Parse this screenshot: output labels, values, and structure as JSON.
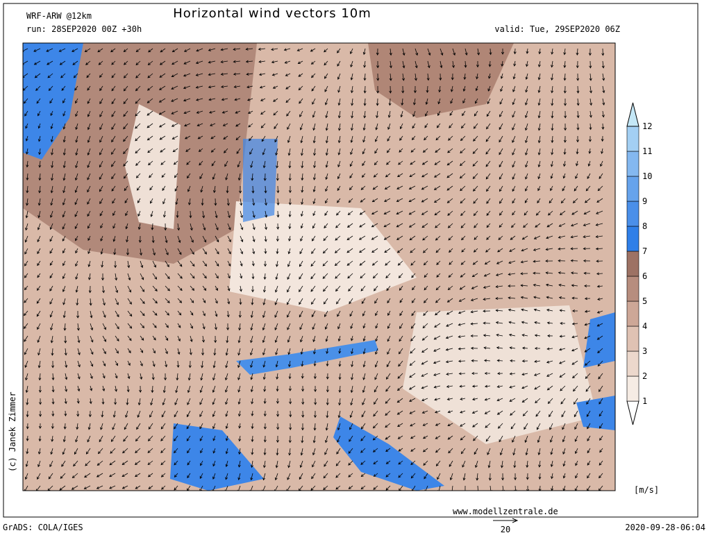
{
  "header": {
    "model": "WRF-ARW @12km",
    "title": "Horizontal wind vectors 10m",
    "run": "run: 28SEP2020 00Z +30h",
    "valid": "valid: Tue, 29SEP2020 06Z"
  },
  "legend": {
    "levels": [
      1,
      2,
      3,
      4,
      5,
      6,
      7,
      8,
      9,
      10,
      11,
      12
    ],
    "colors": [
      "#f6ece4",
      "#ecd8cc",
      "#dfc2b3",
      "#cda797",
      "#b78d7e",
      "#9d7264",
      "#2f7fe8",
      "#4a8fe9",
      "#66a3ec",
      "#84b8f0",
      "#a3cff3",
      "#c4e7f6"
    ],
    "unit": "[m/s]"
  },
  "footer": {
    "website": "www.modellzentrale.de",
    "copyright": "(c) Janek Zimmer",
    "software": "GrADS: COLA/IGES",
    "timestamp": "2020-09-28-06:04",
    "reference_vector": "20"
  }
}
